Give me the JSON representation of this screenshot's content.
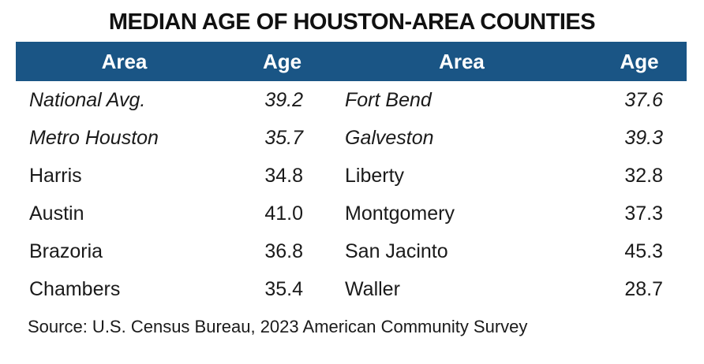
{
  "title": "MEDIAN AGE OF HOUSTON-AREA COUNTIES",
  "colors": {
    "header_bg": "#1A5585",
    "header_text": "#FFFFFF",
    "body_text": "#1A1A1A",
    "page_bg": "#FFFFFF"
  },
  "table": {
    "header": {
      "area_left": "Area",
      "age_left": "Age",
      "area_right": "Area",
      "age_right": "Age"
    },
    "rows": [
      {
        "area_left": "National Avg.",
        "age_left": "39.2",
        "area_right": "Fort Bend",
        "age_right": "37.6"
      },
      {
        "area_left": "Metro Houston",
        "age_left": "35.7",
        "area_right": "Galveston",
        "age_right": "39.3"
      },
      {
        "area_left": "Harris",
        "age_left": "34.8",
        "area_right": "Liberty",
        "age_right": "32.8"
      },
      {
        "area_left": "Austin",
        "age_left": "41.0",
        "area_right": "Montgomery",
        "age_right": "37.3"
      },
      {
        "area_left": "Brazoria",
        "age_left": "36.8",
        "area_right": "San Jacinto",
        "age_right": "45.3"
      },
      {
        "area_left": "Chambers",
        "age_left": "35.4",
        "area_right": "Waller",
        "age_right": "28.7"
      }
    ]
  },
  "source": "Source: U.S. Census Bureau, 2023 American Community Survey",
  "chart_data": {
    "type": "table",
    "title": "MEDIAN AGE OF HOUSTON-AREA COUNTIES",
    "column_headers": [
      "Area",
      "Age",
      "Area",
      "Age"
    ],
    "data": [
      {
        "area": "National Avg.",
        "age": 39.2,
        "emphasis_italic": true
      },
      {
        "area": "Metro Houston",
        "age": 35.7,
        "emphasis_italic": true
      },
      {
        "area": "Harris",
        "age": 34.8,
        "emphasis_italic": false
      },
      {
        "area": "Austin",
        "age": 41.0,
        "emphasis_italic": false
      },
      {
        "area": "Brazoria",
        "age": 36.8,
        "emphasis_italic": false
      },
      {
        "area": "Chambers",
        "age": 35.4,
        "emphasis_italic": false
      },
      {
        "area": "Fort Bend",
        "age": 37.6,
        "emphasis_italic": false
      },
      {
        "area": "Galveston",
        "age": 39.3,
        "emphasis_italic": false
      },
      {
        "area": "Liberty",
        "age": 32.8,
        "emphasis_italic": false
      },
      {
        "area": "Montgomery",
        "age": 37.3,
        "emphasis_italic": false
      },
      {
        "area": "San Jacinto",
        "age": 45.3,
        "emphasis_italic": false
      },
      {
        "area": "Waller",
        "age": 28.7,
        "emphasis_italic": false
      }
    ],
    "source": "Source: U.S. Census Bureau, 2023 American Community Survey",
    "layout": {
      "columns_per_row": 2,
      "header_position": "top",
      "grid": false
    }
  }
}
